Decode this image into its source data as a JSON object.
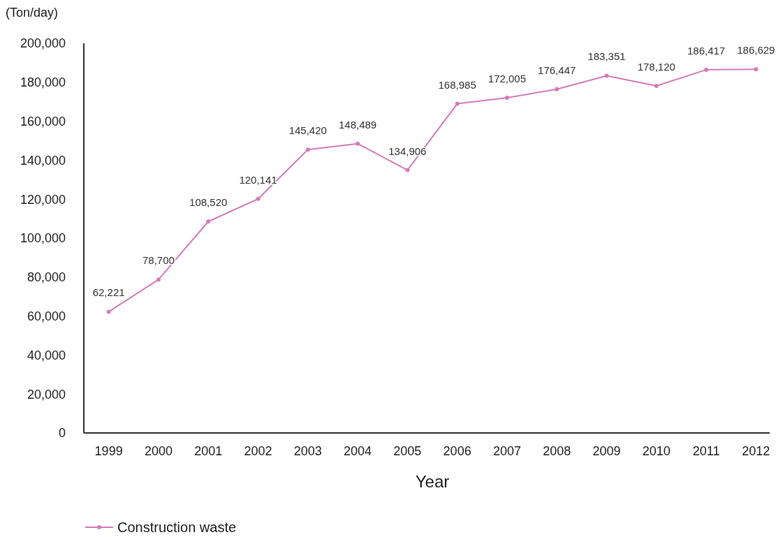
{
  "chart_data": {
    "type": "line",
    "xlabel": "Year",
    "ylabel": "(Ton/day)",
    "categories": [
      "1999",
      "2000",
      "2001",
      "2002",
      "2003",
      "2004",
      "2005",
      "2006",
      "2007",
      "2008",
      "2009",
      "2010",
      "2011",
      "2012"
    ],
    "series": [
      {
        "name": "Construction waste",
        "color": "#d47cba",
        "values": [
          62221,
          78700,
          108520,
          120141,
          145420,
          148489,
          134906,
          168985,
          172005,
          176447,
          183351,
          178120,
          186417,
          186629
        ],
        "value_labels": [
          "62,221",
          "78,700",
          "108,520",
          "120,141",
          "145,420",
          "148,489",
          "134,906",
          "168,985",
          "172,005",
          "176,447",
          "183,351",
          "178,120",
          "186,417",
          "186,629"
        ]
      }
    ],
    "ylim": [
      0,
      200000
    ],
    "yticks": [
      {
        "value": 0,
        "label": "0"
      },
      {
        "value": 20000,
        "label": "20,000"
      },
      {
        "value": 40000,
        "label": "40,000"
      },
      {
        "value": 60000,
        "label": "60,000"
      },
      {
        "value": 80000,
        "label": "80,000"
      },
      {
        "value": 100000,
        "label": "100,000"
      },
      {
        "value": 120000,
        "label": "120,000"
      },
      {
        "value": 140000,
        "label": "140,000"
      },
      {
        "value": 160000,
        "label": "160,000"
      },
      {
        "value": 180000,
        "label": "180,000"
      },
      {
        "value": 200000,
        "label": "200,000"
      }
    ],
    "legend": "bottom left",
    "marker": "circle",
    "line_style": "solid",
    "grid": false
  }
}
